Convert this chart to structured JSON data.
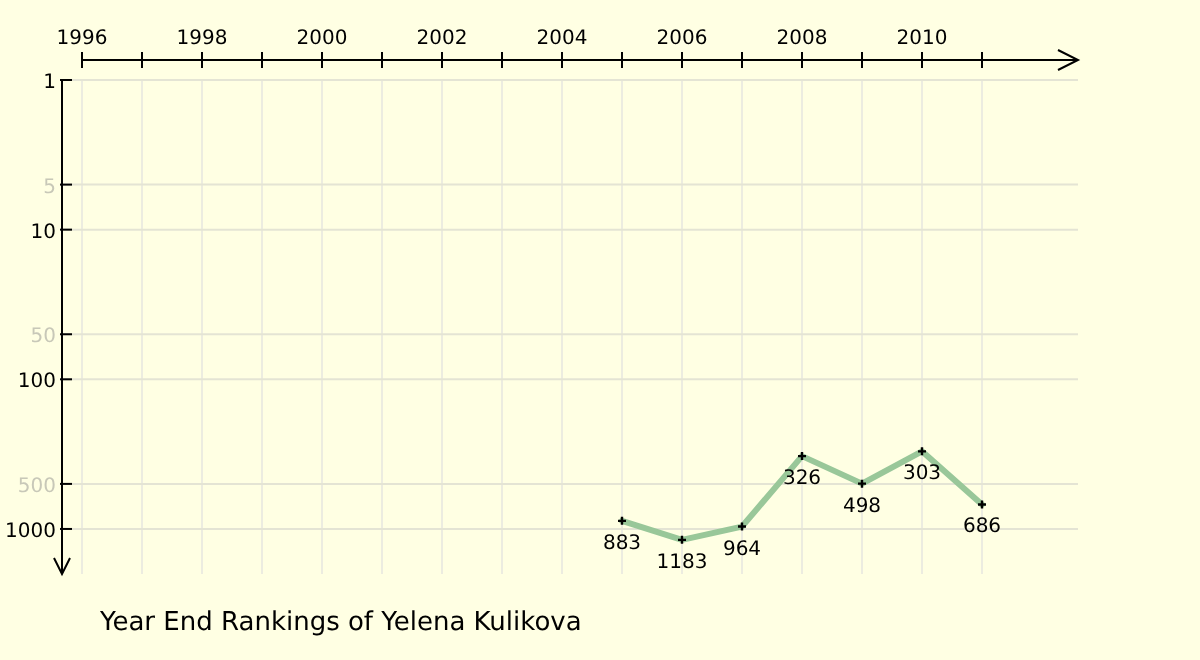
{
  "chart_data": {
    "type": "line",
    "title": "Year End Rankings of  Yelena Kulikova",
    "x": [
      2005,
      2006,
      2007,
      2008,
      2009,
      2010,
      2011
    ],
    "series": [
      {
        "color": "#99c799",
        "values": [
          883,
          1183,
          964,
          326,
          498,
          303,
          686
        ]
      }
    ],
    "log": "y",
    "ylim": [
      2000,
      1
    ],
    "yticks": [
      1,
      {
        "value": 5,
        "label": "5"
      },
      10,
      {
        "value": 50,
        "label": "50"
      },
      100,
      {
        "value": 500,
        "label": "500"
      },
      1000
    ],
    "xlim": [
      1996,
      2012.6
    ],
    "xticks": [
      1996,
      {
        "value": 1997,
        "label": null
      },
      1998,
      {
        "value": 1999,
        "label": null
      },
      2000,
      {
        "value": 2001,
        "label": null
      },
      2002,
      {
        "value": 2003,
        "label": null
      },
      2004,
      {
        "value": 2005,
        "label": null
      },
      2006,
      {
        "value": 2007,
        "label": null
      },
      2008,
      {
        "value": 2009,
        "label": null
      },
      2010,
      {
        "value": 2011,
        "label": null
      }
    ],
    "grid": true,
    "marker": "cross",
    "line_style": "solid",
    "data_labels": true
  }
}
